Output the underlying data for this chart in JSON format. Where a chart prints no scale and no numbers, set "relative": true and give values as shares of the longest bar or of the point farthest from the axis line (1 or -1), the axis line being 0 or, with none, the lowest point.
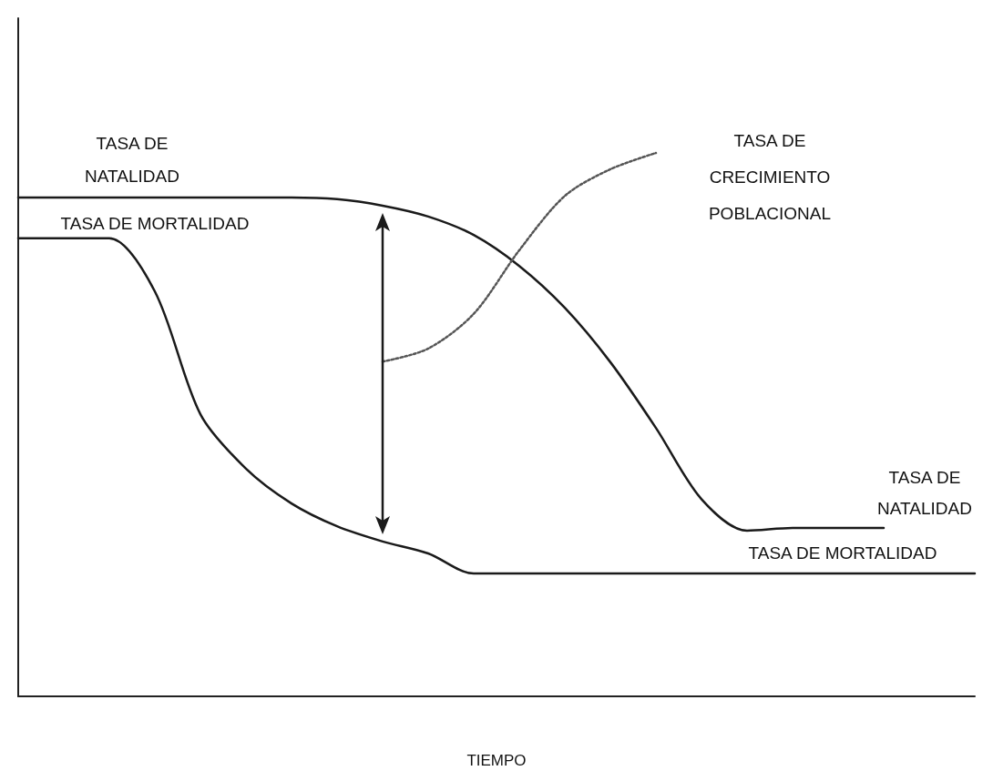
{
  "chart_data": {
    "type": "line",
    "relative": true,
    "xlabel": "TIEMPO",
    "grid": false,
    "marker": "none",
    "categories": [
      null,
      null,
      null,
      null,
      null,
      null,
      null,
      null,
      null,
      null,
      null,
      null,
      null,
      null,
      null,
      null,
      null,
      null,
      null,
      null,
      null,
      null
    ],
    "series": [
      {
        "color": "#1a1a1a",
        "line_style": "solid",
        "values": [
          0.918,
          0.918,
          0.918,
          0.918,
          0.918,
          0.918,
          0.918,
          0.915,
          0.903,
          0.883,
          0.849,
          0.792,
          0.715,
          0.615,
          0.494,
          0.363,
          0.305,
          0.31,
          0.31,
          0.31,
          null,
          null
        ]
      },
      {
        "color": "#1a1a1a",
        "line_style": "solid",
        "values": [
          0.843,
          0.843,
          0.843,
          0.745,
          0.519,
          0.419,
          0.355,
          0.313,
          0.285,
          0.263,
          0.226,
          0.226,
          0.226,
          0.226,
          0.226,
          0.226,
          0.226,
          0.226,
          0.226,
          0.226,
          0.226,
          0.226
        ]
      },
      {
        "color": "#555555",
        "line_style": "dotted",
        "values": [
          null,
          null,
          null,
          null,
          null,
          null,
          null,
          null,
          0.616,
          0.64,
          0.704,
          0.821,
          0.921,
          0.97,
          1.0,
          null,
          null,
          null,
          null,
          null,
          null,
          null
        ]
      }
    ],
    "annotations": [
      "TASA DE\nNATALIDAD",
      "TASA DE MORTALIDAD",
      "TASA DE\nCRECIMIENTO\nPOBLACIONAL",
      "TASA DE\nNATALIDAD",
      "TASA DE MORTALIDAD"
    ]
  }
}
